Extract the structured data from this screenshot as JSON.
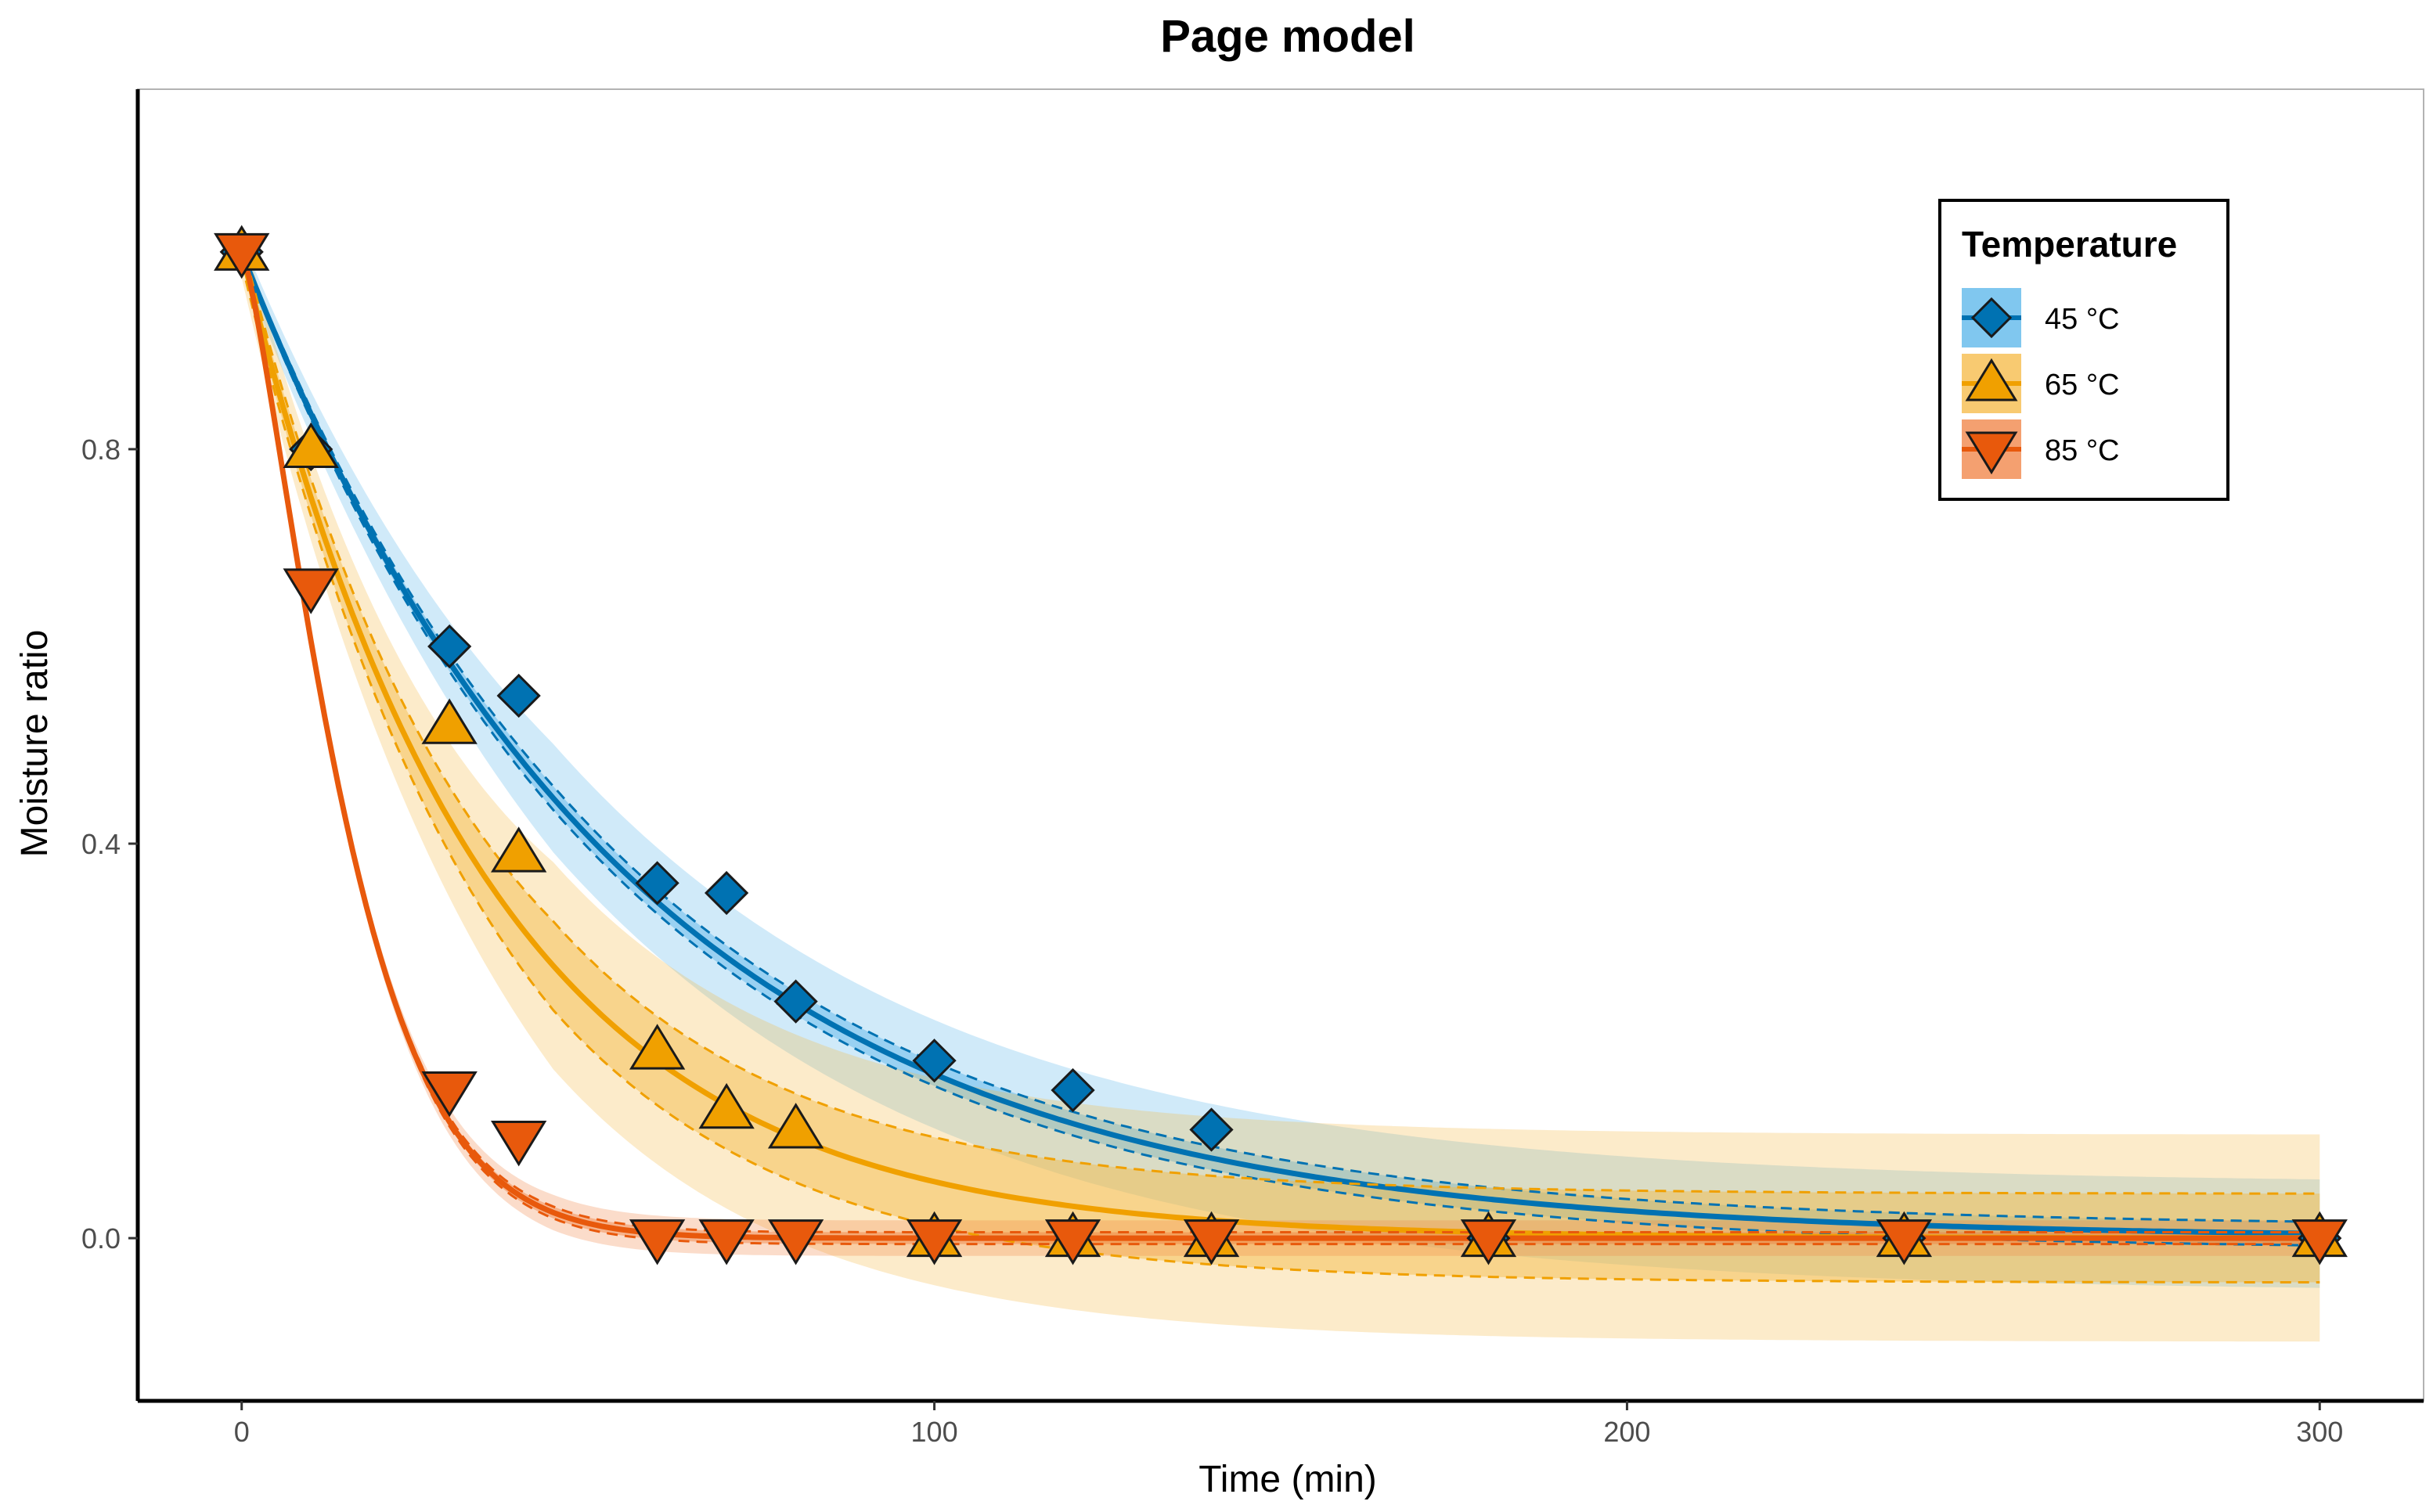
{
  "chart_data": {
    "type": "line",
    "title": "Page model",
    "xlabel": "Time (min)",
    "ylabel": "Moisture ratio",
    "xlim": [
      -15,
      315
    ],
    "ylim": [
      -0.165,
      1.165
    ],
    "x_ticks": [
      0,
      100,
      200,
      300
    ],
    "y_ticks": [
      0.0,
      0.4,
      0.8
    ],
    "x_tick_labels": [
      "0",
      "100",
      "200",
      "300"
    ],
    "y_tick_labels": [
      "0.0",
      "0.4",
      "0.8"
    ],
    "grid": false,
    "legend": {
      "title": "Temperature",
      "placement": "top-right"
    },
    "series": [
      {
        "name": "45 °C",
        "color": "#0072B2",
        "band_color": "#56B4E9",
        "marker": "diamond",
        "model": {
          "k": 0.01794,
          "n": 1.0
        },
        "ci_halfwidth": 0.012,
        "pi_halfwidth": 0.055,
        "points": [
          {
            "x": 0,
            "y": 1.0
          },
          {
            "x": 10,
            "y": 0.8
          },
          {
            "x": 30,
            "y": 0.6
          },
          {
            "x": 40,
            "y": 0.55
          },
          {
            "x": 60,
            "y": 0.36
          },
          {
            "x": 70,
            "y": 0.35
          },
          {
            "x": 80,
            "y": 0.24
          },
          {
            "x": 100,
            "y": 0.18
          },
          {
            "x": 120,
            "y": 0.15
          },
          {
            "x": 140,
            "y": 0.11
          },
          {
            "x": 180,
            "y": 0.0
          },
          {
            "x": 240,
            "y": 0.0
          },
          {
            "x": 300,
            "y": 0.0
          }
        ]
      },
      {
        "name": "65 °C",
        "color": "#F0A000",
        "band_color": "#F5B841",
        "marker": "triangle-up",
        "model": {
          "k": 0.0286,
          "n": 1.0
        },
        "ci_halfwidth": 0.045,
        "pi_halfwidth": 0.105,
        "points": [
          {
            "x": 0,
            "y": 1.0
          },
          {
            "x": 10,
            "y": 0.8
          },
          {
            "x": 30,
            "y": 0.52
          },
          {
            "x": 40,
            "y": 0.39
          },
          {
            "x": 60,
            "y": 0.19
          },
          {
            "x": 70,
            "y": 0.13
          },
          {
            "x": 80,
            "y": 0.11
          },
          {
            "x": 100,
            "y": 0.0
          },
          {
            "x": 120,
            "y": 0.0
          },
          {
            "x": 140,
            "y": 0.0
          },
          {
            "x": 180,
            "y": 0.0
          },
          {
            "x": 240,
            "y": 0.0
          },
          {
            "x": 300,
            "y": 0.0
          }
        ]
      },
      {
        "name": "85 °C",
        "color": "#E8590C",
        "band_color": "#F08040",
        "marker": "triangle-down",
        "model": {
          "k": 0.024,
          "n": 1.32
        },
        "ci_halfwidth": 0.006,
        "pi_halfwidth": 0.018,
        "points": [
          {
            "x": 0,
            "y": 1.0
          },
          {
            "x": 10,
            "y": 0.66
          },
          {
            "x": 30,
            "y": 0.15
          },
          {
            "x": 40,
            "y": 0.1
          },
          {
            "x": 60,
            "y": 0.0
          },
          {
            "x": 70,
            "y": 0.0
          },
          {
            "x": 80,
            "y": 0.0
          },
          {
            "x": 100,
            "y": 0.0
          },
          {
            "x": 120,
            "y": 0.0
          },
          {
            "x": 140,
            "y": 0.0
          },
          {
            "x": 180,
            "y": 0.0
          },
          {
            "x": 240,
            "y": 0.0
          },
          {
            "x": 300,
            "y": 0.0
          }
        ]
      }
    ]
  }
}
